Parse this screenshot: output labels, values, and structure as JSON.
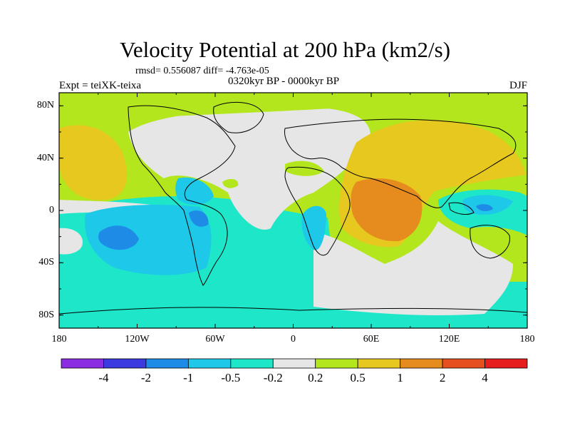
{
  "figure": {
    "title": "Velocity Potential at 200 hPa (km2/s)",
    "stats": "rmsd= 0.556087 diff= -4.763e-05",
    "expt": "Expt = teiXK-teixa",
    "period": "0320kyr BP - 0000kyr BP",
    "season": "DJF"
  },
  "map": {
    "projection": "cylindrical-equidistant",
    "lon_range": [
      -180,
      180
    ],
    "lat_range": [
      -90,
      90
    ],
    "lat_ticks": [
      {
        "value": 80,
        "label": "80N"
      },
      {
        "value": 40,
        "label": "40N"
      },
      {
        "value": 0,
        "label": "0"
      },
      {
        "value": -40,
        "label": "40S"
      },
      {
        "value": -80,
        "label": "80S"
      }
    ],
    "lon_ticks": [
      {
        "value": -180,
        "label": "180"
      },
      {
        "value": -120,
        "label": "120W"
      },
      {
        "value": -60,
        "label": "60W"
      },
      {
        "value": 0,
        "label": "0"
      },
      {
        "value": 60,
        "label": "60E"
      },
      {
        "value": 120,
        "label": "120E"
      },
      {
        "value": 180,
        "label": "180"
      }
    ]
  },
  "colorbar": {
    "colors": [
      "#8b2be2",
      "#3a3ae0",
      "#1e8ce6",
      "#1ec8e8",
      "#1ee6c8",
      "#e6e6e6",
      "#b4e61e",
      "#e6c81e",
      "#e68c1e",
      "#e6501e",
      "#e61e1e"
    ],
    "labels": [
      "-4",
      "-2",
      "-1",
      "-0.5",
      "-0.2",
      "0.2",
      "0.5",
      "1",
      "2",
      "4"
    ]
  }
}
